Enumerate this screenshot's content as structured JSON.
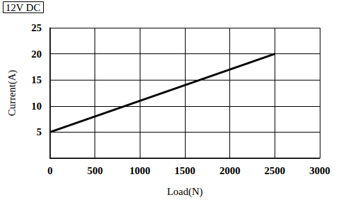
{
  "chart_data": {
    "type": "line",
    "title": "12V DC",
    "x_label": "Load(N)",
    "y_label": "Current(A)",
    "x": [
      0,
      2500
    ],
    "values": [
      5,
      20
    ],
    "color": "#000000",
    "xlim": [
      0,
      3000
    ],
    "xticks": [
      0,
      500,
      1000,
      1500,
      2000,
      2500,
      3000
    ],
    "ylim": [
      0,
      25
    ],
    "yticks": [
      5,
      10,
      15,
      20,
      25
    ],
    "grid": true
  }
}
